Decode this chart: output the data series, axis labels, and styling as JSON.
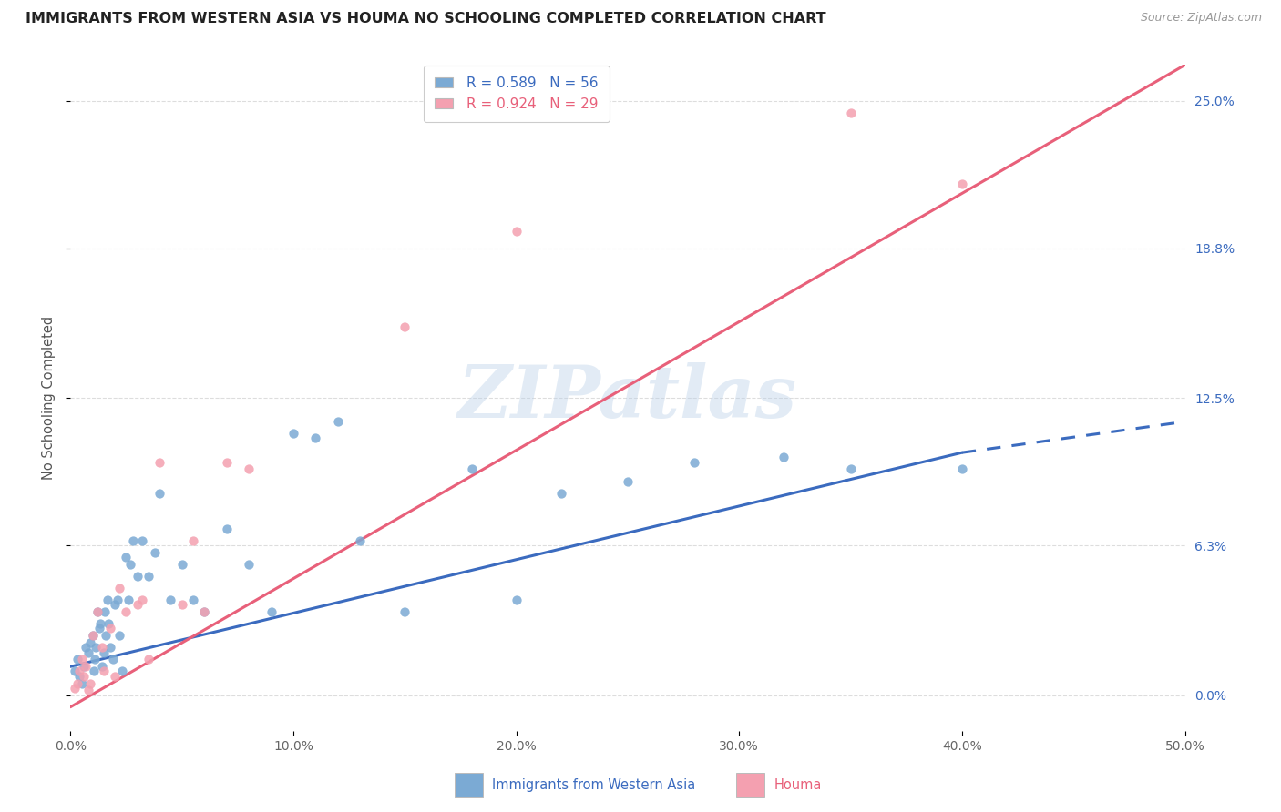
{
  "title": "IMMIGRANTS FROM WESTERN ASIA VS HOUMA NO SCHOOLING COMPLETED CORRELATION CHART",
  "source": "Source: ZipAtlas.com",
  "ylabel": "No Schooling Completed",
  "ytick_labels": [
    "0.0%",
    "6.3%",
    "12.5%",
    "18.8%",
    "25.0%"
  ],
  "ytick_vals": [
    0.0,
    6.3,
    12.5,
    18.8,
    25.0
  ],
  "xlim": [
    0.0,
    50.0
  ],
  "ylim": [
    -1.5,
    26.5
  ],
  "xtick_vals": [
    0.0,
    10.0,
    20.0,
    30.0,
    40.0,
    50.0
  ],
  "xtick_labels": [
    "0.0%",
    "10.0%",
    "20.0%",
    "30.0%",
    "40.0%",
    "50.0%"
  ],
  "legend_blue_r": "R = 0.589",
  "legend_blue_n": "N = 56",
  "legend_pink_r": "R = 0.924",
  "legend_pink_n": "N = 29",
  "blue_color": "#7BAAD4",
  "pink_color": "#F4A0B0",
  "blue_line_color": "#3B6BBF",
  "pink_line_color": "#E8607A",
  "watermark_text": "ZIPatlas",
  "blue_label": "Immigrants from Western Asia",
  "pink_label": "Houma",
  "blue_scatter_x": [
    0.2,
    0.3,
    0.4,
    0.5,
    0.6,
    0.7,
    0.8,
    0.9,
    1.0,
    1.05,
    1.1,
    1.15,
    1.2,
    1.3,
    1.35,
    1.4,
    1.5,
    1.55,
    1.6,
    1.65,
    1.7,
    1.8,
    1.9,
    2.0,
    2.1,
    2.2,
    2.3,
    2.5,
    2.6,
    2.7,
    2.8,
    3.0,
    3.2,
    3.5,
    3.8,
    4.0,
    4.5,
    5.0,
    5.5,
    6.0,
    7.0,
    8.0,
    9.0,
    10.0,
    11.0,
    12.0,
    13.0,
    15.0,
    18.0,
    20.0,
    22.0,
    25.0,
    28.0,
    32.0,
    35.0,
    40.0
  ],
  "blue_scatter_y": [
    1.0,
    1.5,
    0.8,
    0.5,
    1.2,
    2.0,
    1.8,
    2.2,
    2.5,
    1.0,
    1.5,
    2.0,
    3.5,
    2.8,
    3.0,
    1.2,
    1.8,
    3.5,
    2.5,
    4.0,
    3.0,
    2.0,
    1.5,
    3.8,
    4.0,
    2.5,
    1.0,
    5.8,
    4.0,
    5.5,
    6.5,
    5.0,
    6.5,
    5.0,
    6.0,
    8.5,
    4.0,
    5.5,
    4.0,
    3.5,
    7.0,
    5.5,
    3.5,
    11.0,
    10.8,
    11.5,
    6.5,
    3.5,
    9.5,
    4.0,
    8.5,
    9.0,
    9.8,
    10.0,
    9.5,
    9.5
  ],
  "pink_scatter_x": [
    0.2,
    0.3,
    0.4,
    0.5,
    0.6,
    0.7,
    0.8,
    0.9,
    1.0,
    1.2,
    1.4,
    1.5,
    1.8,
    2.0,
    2.2,
    2.5,
    3.0,
    3.2,
    3.5,
    4.0,
    5.0,
    5.5,
    6.0,
    7.0,
    8.0,
    15.0,
    20.0,
    35.0,
    40.0
  ],
  "pink_scatter_y": [
    0.3,
    0.5,
    1.0,
    1.5,
    0.8,
    1.2,
    0.2,
    0.5,
    2.5,
    3.5,
    2.0,
    1.0,
    2.8,
    0.8,
    4.5,
    3.5,
    3.8,
    4.0,
    1.5,
    9.8,
    3.8,
    6.5,
    3.5,
    9.8,
    9.5,
    15.5,
    19.5,
    24.5,
    21.5
  ],
  "blue_line_x0": 0.0,
  "blue_line_x1": 40.0,
  "blue_line_y0": 1.2,
  "blue_line_y1": 10.2,
  "blue_dash_x0": 40.0,
  "blue_dash_x1": 50.0,
  "blue_dash_y0": 10.2,
  "blue_dash_y1": 11.5,
  "pink_line_x0": 0.0,
  "pink_line_x1": 50.0,
  "pink_line_y0": -0.5,
  "pink_line_y1": 26.5
}
